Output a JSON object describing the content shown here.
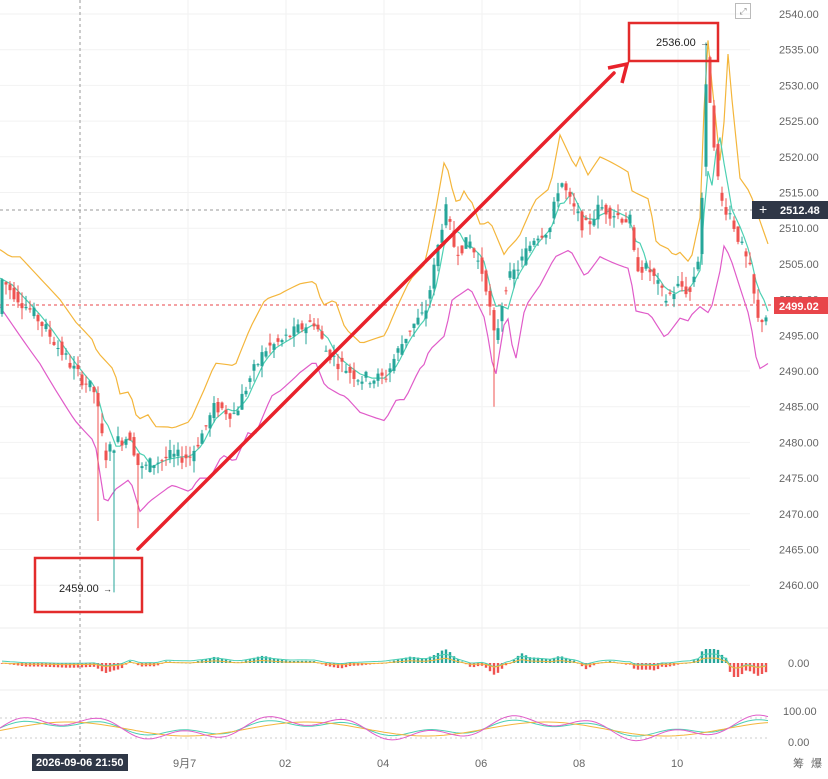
{
  "y_axis": {
    "ticks": [
      "2540.00",
      "2535.00",
      "2530.00",
      "2525.00",
      "2520.00",
      "2515.00",
      "2510.00",
      "2505.00",
      "2500.00",
      "2495.00",
      "2490.00",
      "2485.00",
      "2480.00",
      "2475.00",
      "2470.00",
      "2465.00",
      "2460.00"
    ],
    "crosshair_price": "2512.48",
    "last_price": "2499.02"
  },
  "x_axis": {
    "labels": [
      "9月7",
      "02",
      "04",
      "06",
      "08",
      "10"
    ],
    "crosshair_time": "2026-09-06 21:50"
  },
  "annotations": {
    "high_label": "2536.00",
    "low_label": "2459.00"
  },
  "macd_panel": {
    "zero_label": "0.00"
  },
  "kdj_panel": {
    "top_label": "100.00",
    "bottom_label": "0.00"
  },
  "footer_icons": [
    "筹",
    "爆"
  ],
  "colors": {
    "up": "#26a69a",
    "down": "#ef5350",
    "ma_fast": "#4dd0b3",
    "boll_upper": "#f4b63c",
    "boll_lower": "#e05cc9",
    "arrow": "#e8222b",
    "last_price_bg": "#e8454a",
    "crosshair_bg": "#2f3747"
  },
  "chart_data": {
    "type": "candlestick",
    "price_range": [
      2455,
      2541
    ],
    "line_segments": [
      {
        "from": {
          "time_label": "2026-09-06 21:50",
          "price": 2459.0
        },
        "to": {
          "price": 2536.0
        }
      }
    ]
  }
}
